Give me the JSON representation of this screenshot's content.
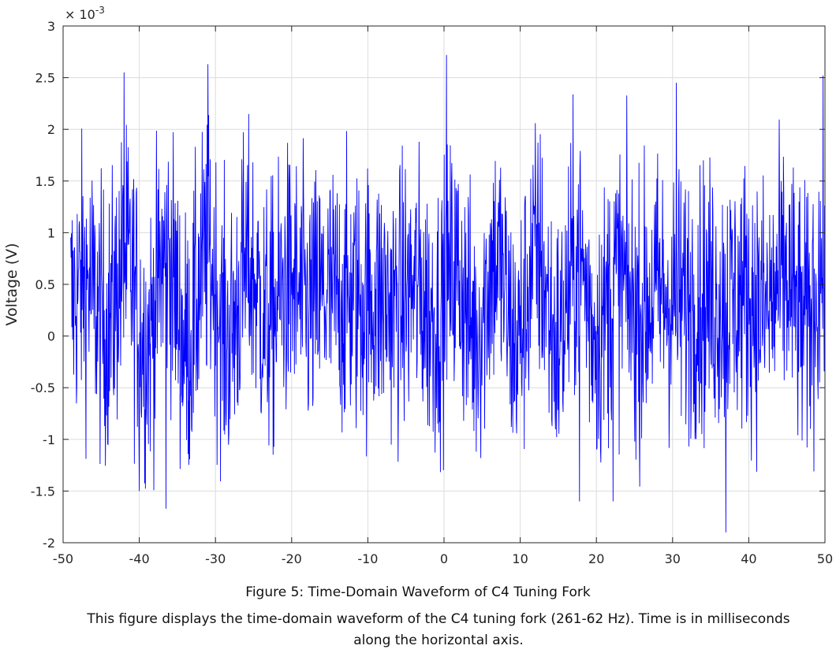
{
  "chart_data": {
    "type": "line",
    "xlabel": "",
    "ylabel": "Voltage (V)",
    "xlim": [
      -50,
      50
    ],
    "ylim": [
      -0.002,
      0.003
    ],
    "exponent_label": "× 10",
    "exponent_power": "-3",
    "x_ticks": [
      "-50",
      "-40",
      "-30",
      "-20",
      "-10",
      "0",
      "10",
      "20",
      "30",
      "40",
      "50"
    ],
    "y_ticks": [
      "-2",
      "-1.5",
      "-1",
      "-0.5",
      "0",
      "0.5",
      "1",
      "1.5",
      "2",
      "2.5",
      "3"
    ],
    "grid": true,
    "line_color": "#0000ff",
    "series": [
      {
        "x_start": -49.0,
        "x_end": 50.0,
        "sample_count": 1980,
        "baseline": 0.00035,
        "amplitude_range": [
          -0.0019,
          0.0027
        ],
        "peaks": [
          {
            "x": -42.0,
            "y": 0.00255
          },
          {
            "x": -31.0,
            "y": 0.00263
          },
          {
            "x": 0.3,
            "y": 0.00272
          },
          {
            "x": 30.5,
            "y": 0.00245
          },
          {
            "x": -36.5,
            "y": -0.00167
          },
          {
            "x": 37.0,
            "y": -0.0019
          },
          {
            "x": -40.0,
            "y": -0.0015
          },
          {
            "x": 22.2,
            "y": -0.0016
          },
          {
            "x": 17.8,
            "y": -0.0016
          }
        ]
      }
    ]
  },
  "caption": {
    "title": "Figure 5: Time-Domain Waveform of C4 Tuning Fork",
    "body": "This figure displays the time-domain waveform of the C4 tuning fork (261-62 Hz). Time is in milliseconds along the horizontal axis."
  }
}
